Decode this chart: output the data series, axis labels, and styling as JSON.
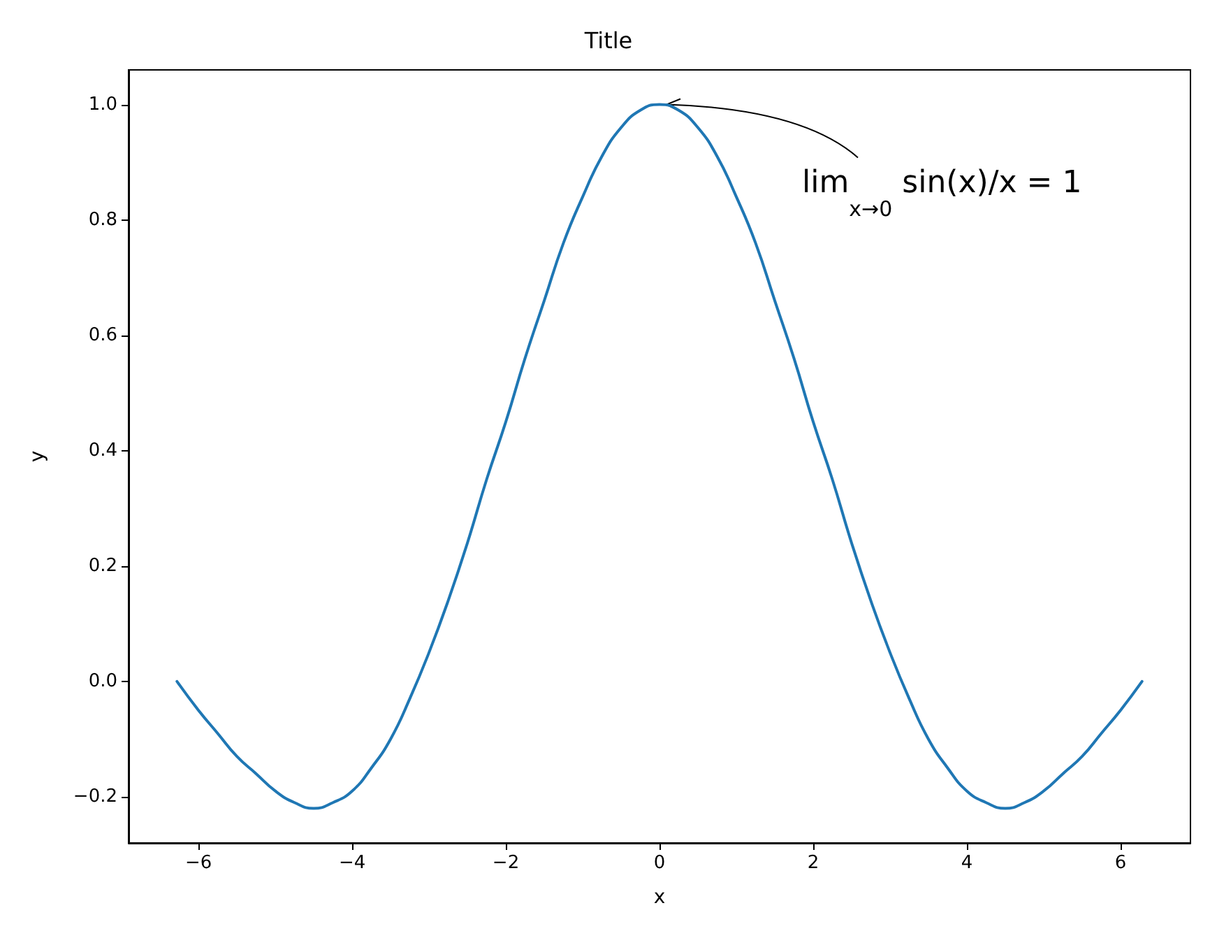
{
  "chart_data": {
    "type": "line",
    "title": "Title",
    "xlabel": "x",
    "ylabel": "y",
    "x": [
      -6.28,
      -6,
      -5.75,
      -5.5,
      -5.25,
      -5,
      -4.75,
      -4.5,
      -4.25,
      -4,
      -3.75,
      -3.5,
      -3.25,
      -3,
      -2.75,
      -2.5,
      -2.25,
      -2,
      -1.75,
      -1.5,
      -1.25,
      -1,
      -0.75,
      -0.5,
      -0.25,
      0,
      0.25,
      0.5,
      0.75,
      1,
      1.25,
      1.5,
      1.75,
      2,
      2.25,
      2.5,
      2.75,
      3,
      3.25,
      3.5,
      3.75,
      4,
      4.25,
      4.5,
      4.75,
      5,
      5.25,
      5.5,
      5.75,
      6,
      6.28
    ],
    "series": [
      {
        "color": "#1f77b4",
        "values": [
          0,
          -0.05,
          -0.09,
          -0.13,
          -0.16,
          -0.19,
          -0.21,
          -0.22,
          -0.21,
          -0.19,
          -0.15,
          -0.1,
          -0.03,
          0.05,
          0.14,
          0.24,
          0.35,
          0.45,
          0.56,
          0.66,
          0.76,
          0.84,
          0.91,
          0.96,
          0.99,
          1,
          0.99,
          0.96,
          0.91,
          0.84,
          0.76,
          0.66,
          0.56,
          0.45,
          0.35,
          0.24,
          0.14,
          0.05,
          -0.03,
          -0.1,
          -0.15,
          -0.19,
          -0.21,
          -0.22,
          -0.21,
          -0.19,
          -0.16,
          -0.13,
          -0.09,
          -0.05,
          0
        ]
      }
    ],
    "xlim": [
      -6.91,
      6.91
    ],
    "ylim": [
      -0.28,
      1.06
    ],
    "xticks": [
      {
        "value": -6,
        "label": "−6"
      },
      {
        "value": -4,
        "label": "−4"
      },
      {
        "value": -2,
        "label": "−2"
      },
      0,
      2,
      4,
      6
    ],
    "yticks": [
      {
        "value": -0.2,
        "label": "−0.2"
      },
      {
        "value": 0,
        "label": "0.0"
      },
      0.2,
      0.4,
      0.6,
      0.8,
      {
        "value": 1,
        "label": "1.0"
      }
    ],
    "annotations": [
      {
        "text": "lim$_{x→0}$ sin(x)/x = 1",
        "x": 0,
        "y": 1
      }
    ],
    "grid": false,
    "marker": "none",
    "line_style": "solid"
  }
}
